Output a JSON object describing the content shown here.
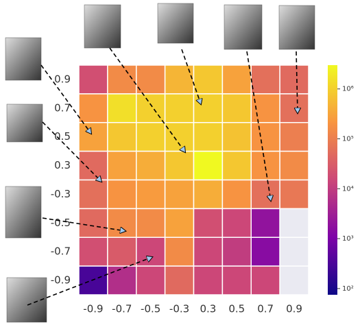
{
  "chart_data": {
    "type": "heatmap",
    "x_categories": [
      "-0.9",
      "-0.7",
      "-0.5",
      "-0.3",
      "0.3",
      "0.5",
      "0.7",
      "0.9"
    ],
    "y_categories": [
      "0.9",
      "0.7",
      "0.5",
      "0.3",
      "-0.3",
      "-0.5",
      "-0.7",
      "-0.9"
    ],
    "values": [
      [
        20000,
        150000,
        150000,
        500000,
        800000,
        300000,
        60000,
        50000
      ],
      [
        200000,
        1500000,
        1000000,
        1000000,
        1000000,
        800000,
        200000,
        60000
      ],
      [
        300000,
        800000,
        1000000,
        1000000,
        1000000,
        700000,
        200000,
        100000
      ],
      [
        50000,
        300000,
        400000,
        800000,
        3000000,
        800000,
        200000,
        150000
      ],
      [
        60000,
        200000,
        250000,
        300000,
        400000,
        200000,
        60000,
        80000
      ],
      [
        50000,
        150000,
        150000,
        300000,
        20000,
        15000,
        2000,
        null
      ],
      [
        20000,
        30000,
        15000,
        150000,
        15000,
        10000,
        1500,
        null
      ],
      [
        300,
        6000,
        15000,
        50000,
        15000,
        15000,
        15000,
        null
      ]
    ],
    "colormap": "plasma",
    "log_scale": true,
    "zlim": [
      75,
      3000000
    ],
    "zticks": [
      {
        "value": 100,
        "label": "10²"
      },
      {
        "value": 1000,
        "label": "10³"
      },
      {
        "value": 10000,
        "label": "10⁴"
      },
      {
        "value": 100000,
        "label": "10⁵"
      },
      {
        "value": 1000000,
        "label": "10⁶"
      }
    ]
  }
}
